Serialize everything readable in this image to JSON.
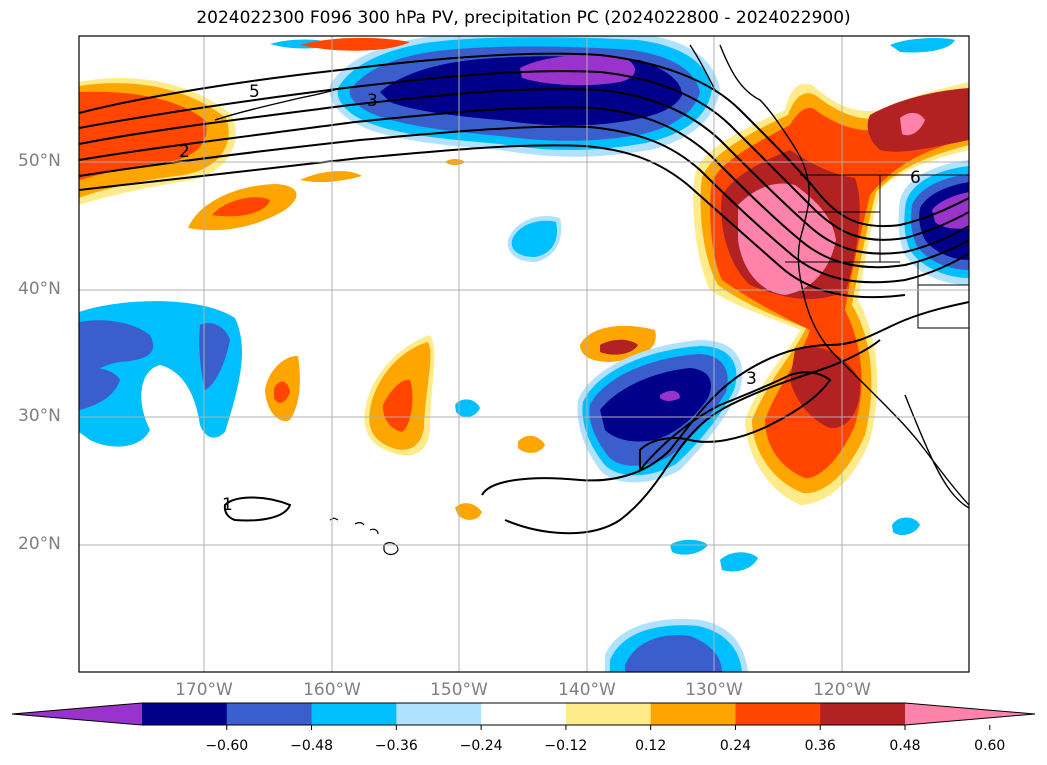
{
  "title": "2024022300 F096 300 hPa PV, precipitation PC (2024022800 - 2024022900)",
  "lat_labels": [
    "50°N",
    "40°N",
    "30°N",
    "20°N"
  ],
  "lon_labels": [
    "170°W",
    "160°W",
    "150°W",
    "140°W",
    "130°W",
    "120°W"
  ],
  "contour_labels": [
    "5",
    "3",
    "2",
    "6",
    "3",
    "1"
  ],
  "colorbar": {
    "ticks": [
      "−0.60",
      "−0.48",
      "−0.36",
      "−0.24",
      "−0.12",
      "0.12",
      "0.24",
      "0.36",
      "0.48",
      "0.60"
    ],
    "colors": [
      "#9933cc",
      "#00008b",
      "#3a5fcd",
      "#00bfff",
      "#b0e2ff",
      "#ffffff",
      "#ffeb8a",
      "#ffa500",
      "#ff4500",
      "#b22222",
      "#ff82ab"
    ]
  }
}
